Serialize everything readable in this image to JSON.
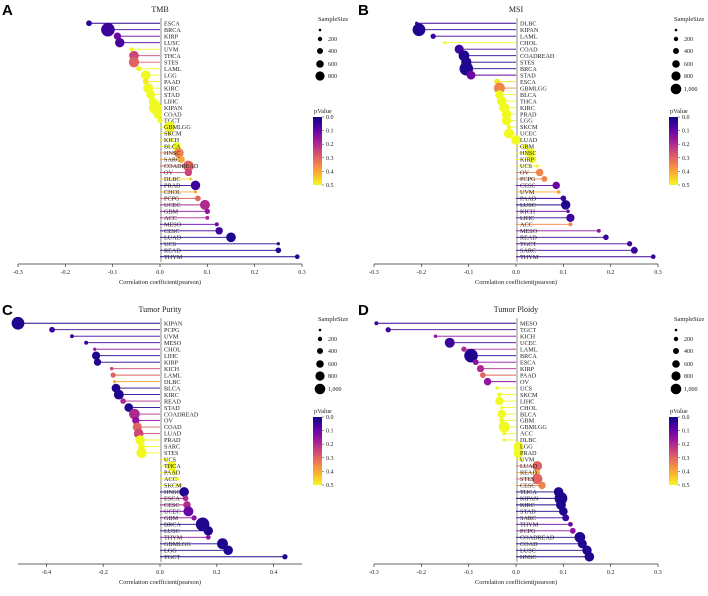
{
  "chart_data": [
    {
      "type": "lollipop",
      "panel_label": "A",
      "title": "TMB",
      "xlabel": "Correlation coefficient(pearson)",
      "xlim": [
        -0.3,
        0.3
      ],
      "xticks": [
        -0.3,
        -0.2,
        -0.1,
        0.0,
        0.1,
        0.2,
        0.3
      ],
      "xtick_labels": [
        "-0.3",
        "-0.2",
        "-0.1",
        "0.0",
        "0.1",
        "0.2",
        "0.3"
      ],
      "categories": [
        "ESCA",
        "BRCA",
        "KIRP",
        "LUSC",
        "UVM",
        "THCA",
        "STES",
        "LAML",
        "LGG",
        "PAAD",
        "KIRC",
        "STAD",
        "LIHC",
        "KIPAN",
        "COAD",
        "TGCT",
        "GBMLGG",
        "SKCM",
        "KICH",
        "BLCA",
        "HNSC",
        "SARC",
        "COADREAD",
        "OV",
        "DLBC",
        "PRAD",
        "CHOL",
        "PCPG",
        "UCEC",
        "GBM",
        "ACC",
        "MESO",
        "CESC",
        "LUAD",
        "UCS",
        "READ",
        "THYM"
      ],
      "x": [
        -0.15,
        -0.11,
        -0.09,
        -0.085,
        -0.06,
        -0.055,
        -0.055,
        -0.045,
        -0.03,
        -0.03,
        -0.025,
        -0.02,
        -0.015,
        -0.01,
        -0.005,
        0.0,
        0.02,
        0.02,
        0.025,
        0.035,
        0.04,
        0.045,
        0.06,
        0.06,
        0.065,
        0.075,
        0.075,
        0.08,
        0.095,
        0.1,
        0.1,
        0.12,
        0.125,
        0.15,
        0.25,
        0.25,
        0.29
      ],
      "pvalue": [
        0.03,
        0.05,
        0.1,
        0.06,
        0.5,
        0.25,
        0.3,
        0.5,
        0.5,
        0.48,
        0.5,
        0.5,
        0.5,
        0.5,
        0.5,
        0.5,
        0.5,
        0.48,
        0.5,
        0.5,
        0.35,
        0.4,
        0.3,
        0.25,
        0.45,
        0.05,
        0.4,
        0.3,
        0.2,
        0.15,
        0.2,
        0.1,
        0.05,
        0.02,
        0.02,
        0.02,
        0.02
      ],
      "sample_size": [
        180,
        1000,
        290,
        480,
        80,
        500,
        580,
        150,
        500,
        180,
        530,
        410,
        370,
        880,
        450,
        150,
        650,
        100,
        65,
        410,
        500,
        260,
        620,
        300,
        48,
        490,
        36,
        180,
        540,
        150,
        80,
        85,
        300,
        510,
        57,
        170,
        120
      ],
      "size_legend": {
        "title": "SampleSize",
        "labels": [
          "200",
          "400",
          "600",
          "800"
        ]
      },
      "color_legend": {
        "title": "pValue",
        "labels": [
          "0.0",
          "0.1",
          "0.2",
          "0.3",
          "0.4",
          "0.5"
        ]
      }
    },
    {
      "type": "lollipop",
      "panel_label": "B",
      "title": "MSI",
      "xlabel": "Correlation coefficient(pearson)",
      "xlim": [
        -0.3,
        0.3
      ],
      "xticks": [
        -0.3,
        -0.2,
        -0.1,
        0.0,
        0.1,
        0.2,
        0.3
      ],
      "xtick_labels": [
        "-0.3",
        "-0.2",
        "-0.1",
        "0.0",
        "0.1",
        "0.2",
        "0.3"
      ],
      "categories": [
        "DLBC",
        "KIPAN",
        "LAML",
        "CHOL",
        "COAD",
        "COADREAD",
        "STES",
        "BRCA",
        "STAD",
        "ESCA",
        "GBMLGG",
        "BLCA",
        "THCA",
        "KIRC",
        "PRAD",
        "LGG",
        "SKCM",
        "UCEC",
        "LUAD",
        "GBM",
        "HNSC",
        "KIRP",
        "UCS",
        "OV",
        "PCPG",
        "CESC",
        "UVM",
        "PAAD",
        "LUSC",
        "KICH",
        "LIHC",
        "ACC",
        "MESO",
        "READ",
        "TGCT",
        "SARC",
        "THYM"
      ],
      "x": [
        -0.21,
        -0.205,
        -0.175,
        -0.15,
        -0.12,
        -0.11,
        -0.105,
        -0.105,
        -0.095,
        -0.04,
        -0.035,
        -0.035,
        -0.03,
        -0.025,
        -0.02,
        -0.02,
        -0.015,
        -0.015,
        0.0,
        0.02,
        0.03,
        0.035,
        0.045,
        0.05,
        0.06,
        0.085,
        0.09,
        0.1,
        0.105,
        0.11,
        0.115,
        0.115,
        0.175,
        0.19,
        0.24,
        0.25,
        0.29
      ],
      "pvalue": [
        0.05,
        0.02,
        0.05,
        0.5,
        0.05,
        0.02,
        0.02,
        0.02,
        0.1,
        0.48,
        0.35,
        0.5,
        0.5,
        0.5,
        0.5,
        0.5,
        0.5,
        0.5,
        0.5,
        0.5,
        0.5,
        0.5,
        0.5,
        0.35,
        0.35,
        0.1,
        0.4,
        0.05,
        0.02,
        0.1,
        0.05,
        0.35,
        0.15,
        0.05,
        0.05,
        0.05,
        0.05
      ],
      "sample_size": [
        48,
        880,
        150,
        36,
        450,
        620,
        580,
        1000,
        410,
        180,
        650,
        410,
        500,
        530,
        490,
        500,
        100,
        540,
        510,
        150,
        500,
        290,
        57,
        300,
        180,
        300,
        80,
        180,
        480,
        65,
        370,
        80,
        85,
        170,
        150,
        260,
        120
      ],
      "size_legend": {
        "title": "SampleSize",
        "labels": [
          "200",
          "400",
          "600",
          "800",
          "1,000"
        ]
      },
      "color_legend": {
        "title": "pValue",
        "labels": [
          "0.0",
          "0.1",
          "0.2",
          "0.3",
          "0.4",
          "0.5"
        ]
      }
    },
    {
      "type": "lollipop",
      "panel_label": "C",
      "title": "Tumor Purity",
      "xlabel": "Correlation coefficient(pearson)",
      "xlim": [
        -0.5,
        0.5
      ],
      "xticks": [
        -0.4,
        -0.2,
        0.0,
        0.2,
        0.4
      ],
      "xtick_labels": [
        "-0.4",
        "-0.2",
        "0.0",
        "0.2",
        "0.4"
      ],
      "categories": [
        "KIPAN",
        "PCPG",
        "UVM",
        "MESO",
        "CHOL",
        "LIHC",
        "KIRP",
        "KICH",
        "LAML",
        "DLBC",
        "BLCA",
        "KIRC",
        "READ",
        "STAD",
        "COADREAD",
        "OV",
        "COAD",
        "LUAD",
        "PRAD",
        "SARC",
        "STES",
        "UCS",
        "THCA",
        "PAAD",
        "ACC",
        "SKCM",
        "HNSC",
        "ESCA",
        "CESC",
        "UCEC",
        "GBM",
        "BRCA",
        "LUSC",
        "THYM",
        "GBMLGG",
        "LGG",
        "TGCT"
      ],
      "x": [
        -0.5,
        -0.38,
        -0.31,
        -0.26,
        -0.23,
        -0.225,
        -0.22,
        -0.17,
        -0.165,
        -0.16,
        -0.155,
        -0.145,
        -0.13,
        -0.11,
        -0.09,
        -0.085,
        -0.08,
        -0.075,
        -0.07,
        -0.065,
        -0.065,
        0.02,
        0.04,
        0.05,
        0.06,
        0.07,
        0.085,
        0.09,
        0.095,
        0.1,
        0.12,
        0.15,
        0.17,
        0.17,
        0.22,
        0.24,
        0.44
      ],
      "pvalue": [
        0.02,
        0.05,
        0.05,
        0.05,
        0.15,
        0.02,
        0.02,
        0.25,
        0.3,
        0.4,
        0.02,
        0.02,
        0.2,
        0.02,
        0.2,
        0.15,
        0.3,
        0.25,
        0.5,
        0.5,
        0.5,
        0.5,
        0.5,
        0.5,
        0.5,
        0.5,
        0.02,
        0.2,
        0.2,
        0.1,
        0.15,
        0.02,
        0.02,
        0.15,
        0.02,
        0.02,
        0.02
      ],
      "sample_size": [
        880,
        180,
        80,
        85,
        36,
        370,
        290,
        65,
        150,
        48,
        410,
        530,
        170,
        410,
        620,
        300,
        450,
        510,
        490,
        260,
        580,
        57,
        500,
        180,
        80,
        100,
        500,
        180,
        300,
        540,
        150,
        1000,
        480,
        120,
        650,
        500,
        150
      ],
      "size_legend": {
        "title": "SampleSize",
        "labels": [
          "200",
          "400",
          "600",
          "800",
          "1,000"
        ]
      },
      "color_legend": {
        "title": "pValue",
        "labels": [
          "0.0",
          "0.1",
          "0.2",
          "0.3",
          "0.4",
          "0.5"
        ]
      }
    },
    {
      "type": "lollipop",
      "panel_label": "D",
      "title": "Tumor Ploidy",
      "xlabel": "Correlation coefficient(pearson)",
      "xlim": [
        -0.3,
        0.3
      ],
      "xticks": [
        -0.3,
        -0.2,
        -0.1,
        0.0,
        0.1,
        0.2,
        0.3
      ],
      "xtick_labels": [
        "-0.3",
        "-0.2",
        "-0.1",
        "0.0",
        "0.1",
        "0.2",
        "0.3"
      ],
      "categories": [
        "MESO",
        "TGCT",
        "KICH",
        "UCEC",
        "LAML",
        "BRCA",
        "ESCA",
        "KIRP",
        "PAAD",
        "OV",
        "UCS",
        "SKCM",
        "LIHC",
        "CHOL",
        "BLCA",
        "GBM",
        "GBMLGG",
        "ACC",
        "DLBC",
        "LGG",
        "PRAD",
        "UVM",
        "LUAD",
        "READ",
        "STES",
        "CESC",
        "THCA",
        "KIPAN",
        "KIRC",
        "STAD",
        "SARC",
        "THYM",
        "PCPG",
        "COADREAD",
        "COAD",
        "LUSC",
        "HNSC"
      ],
      "x": [
        -0.295,
        -0.27,
        -0.17,
        -0.14,
        -0.11,
        -0.095,
        -0.085,
        -0.075,
        -0.07,
        -0.06,
        -0.04,
        -0.035,
        -0.035,
        -0.03,
        -0.03,
        -0.03,
        -0.025,
        -0.025,
        -0.025,
        0.005,
        0.005,
        0.01,
        0.045,
        0.045,
        0.045,
        0.055,
        0.09,
        0.095,
        0.095,
        0.1,
        0.105,
        0.115,
        0.12,
        0.135,
        0.14,
        0.15,
        0.155
      ],
      "pvalue": [
        0.05,
        0.05,
        0.15,
        0.05,
        0.2,
        0.02,
        0.15,
        0.2,
        0.3,
        0.15,
        0.5,
        0.5,
        0.5,
        0.5,
        0.5,
        0.5,
        0.5,
        0.5,
        0.5,
        0.5,
        0.5,
        0.5,
        0.3,
        0.4,
        0.3,
        0.35,
        0.02,
        0.02,
        0.02,
        0.02,
        0.05,
        0.1,
        0.15,
        0.02,
        0.02,
        0.02,
        0.02
      ],
      "sample_size": [
        85,
        150,
        65,
        540,
        150,
        1000,
        180,
        290,
        180,
        300,
        57,
        100,
        370,
        36,
        410,
        150,
        650,
        80,
        48,
        500,
        490,
        80,
        510,
        170,
        580,
        300,
        500,
        880,
        530,
        410,
        260,
        120,
        180,
        620,
        450,
        480,
        500
      ],
      "size_legend": {
        "title": "SampleSize",
        "labels": [
          "200",
          "400",
          "600",
          "800",
          "1,000"
        ]
      },
      "color_legend": {
        "title": "pValue",
        "labels": [
          "0.0",
          "0.1",
          "0.2",
          "0.3",
          "0.4",
          "0.5"
        ]
      }
    }
  ],
  "colors": {
    "scale": [
      "#0d0887",
      "#5c01a6",
      "#9c179e",
      "#cc4778",
      "#ed7953",
      "#fdb42f",
      "#f0f921"
    ],
    "axis": "#333333",
    "baseline": "#c8c8c8"
  }
}
